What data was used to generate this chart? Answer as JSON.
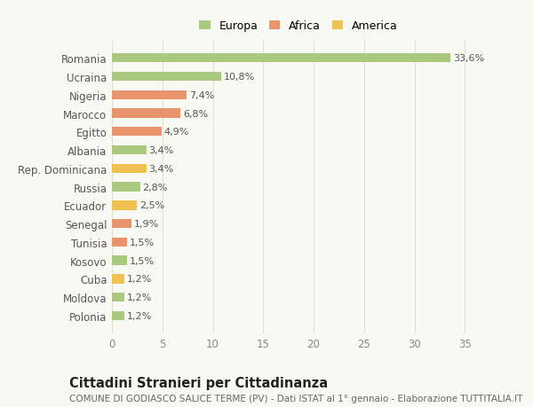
{
  "categories": [
    "Polonia",
    "Moldova",
    "Cuba",
    "Kosovo",
    "Tunisia",
    "Senegal",
    "Ecuador",
    "Russia",
    "Rep. Dominicana",
    "Albania",
    "Egitto",
    "Marocco",
    "Nigeria",
    "Ucraina",
    "Romania"
  ],
  "values": [
    1.2,
    1.2,
    1.2,
    1.5,
    1.5,
    1.9,
    2.5,
    2.8,
    3.4,
    3.4,
    4.9,
    6.8,
    7.4,
    10.8,
    33.6
  ],
  "colors": [
    "#a8c97f",
    "#a8c97f",
    "#f0c050",
    "#a8c97f",
    "#e8936a",
    "#e8936a",
    "#f0c050",
    "#a8c97f",
    "#f0c050",
    "#a8c97f",
    "#e8936a",
    "#e8936a",
    "#e8936a",
    "#a8c97f",
    "#a8c97f"
  ],
  "labels": [
    "1,2%",
    "1,2%",
    "1,2%",
    "1,5%",
    "1,5%",
    "1,9%",
    "2,5%",
    "2,8%",
    "3,4%",
    "3,4%",
    "4,9%",
    "6,8%",
    "7,4%",
    "10,8%",
    "33,6%"
  ],
  "legend": [
    {
      "label": "Europa",
      "color": "#a8c97f"
    },
    {
      "label": "Africa",
      "color": "#e8936a"
    },
    {
      "label": "America",
      "color": "#f0c050"
    }
  ],
  "xlim": [
    0,
    37
  ],
  "xticks": [
    0,
    5,
    10,
    15,
    20,
    25,
    30,
    35
  ],
  "title": "Cittadini Stranieri per Cittadinanza",
  "subtitle": "COMUNE DI GODIASCO SALICE TERME (PV) - Dati ISTAT al 1° gennaio - Elaborazione TUTTITALIA.IT",
  "background_color": "#f9f9f4",
  "grid_color": "#e0dfd0",
  "bar_height": 0.5,
  "label_fontsize": 8,
  "ytick_fontsize": 8.5,
  "xtick_fontsize": 8.5,
  "title_fontsize": 10.5,
  "subtitle_fontsize": 7.5
}
